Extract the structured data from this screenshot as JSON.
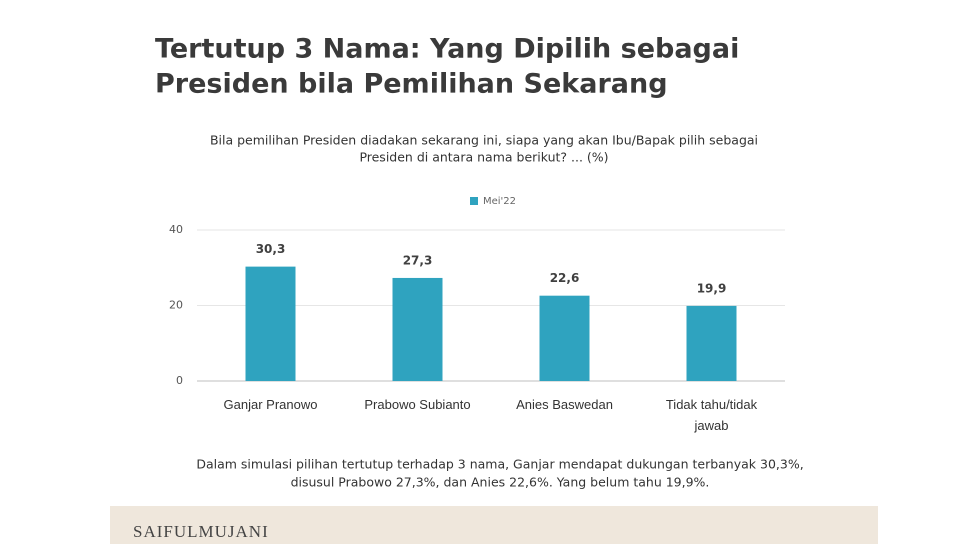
{
  "chart_data": {
    "type": "bar",
    "title": [
      "Tertutup 3 Nama: Yang Dipilih sebagai",
      "Presiden bila Pemilihan Sekarang"
    ],
    "subtitle": [
      "Bila pemilihan Presiden diadakan sekarang ini, siapa yang akan Ibu/Bapak pilih sebagai",
      "Presiden di antara nama berikut? ... (%)"
    ],
    "categories": [
      "Ganjar Pranowo",
      "Prabowo Subianto",
      "Anies Baswedan",
      "Tidak tahu/tidak jawab"
    ],
    "series": [
      {
        "name": "Mei'22",
        "color": "#2fa3bf",
        "values": [
          30.3,
          27.3,
          22.6,
          19.9
        ],
        "value_labels": [
          "30,3",
          "27,3",
          "22,6",
          "19,9"
        ]
      }
    ],
    "ylim": [
      0,
      40
    ],
    "yticks": [
      0,
      20,
      40
    ],
    "grid": true,
    "legend": "top",
    "note": [
      "Dalam simulasi pilihan tertutup terhadap 3 nama, Ganjar mendapat dukungan terbanyak 30,3%,",
      "disusul Prabowo 27,3%, dan Anies 22,6%. Yang belum tahu 19,9%."
    ]
  },
  "footer": "SAIFULMUJANI"
}
